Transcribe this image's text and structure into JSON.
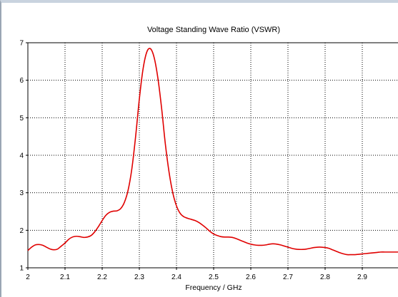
{
  "chart_data": {
    "type": "line",
    "title": "Voltage Standing Wave Ratio (VSWR)",
    "xlabel": "Frequency / GHz",
    "ylabel": "",
    "xlim": [
      2.0,
      3.0
    ],
    "ylim": [
      1,
      7
    ],
    "x_ticks": [
      "2",
      "2.1",
      "2.2",
      "2.3",
      "2.4",
      "2.5",
      "2.6",
      "2.7",
      "2.8",
      "2.9"
    ],
    "x_tick_values": [
      2.0,
      2.1,
      2.2,
      2.3,
      2.4,
      2.5,
      2.6,
      2.7,
      2.8,
      2.9
    ],
    "y_ticks": [
      "1",
      "2",
      "3",
      "4",
      "5",
      "6",
      "7"
    ],
    "y_tick_values": [
      1,
      2,
      3,
      4,
      5,
      6,
      7
    ],
    "grid": true,
    "legend": "none",
    "series": [
      {
        "color": "#e00000",
        "x": [
          2.0,
          2.01,
          2.02,
          2.03,
          2.04,
          2.05,
          2.06,
          2.07,
          2.08,
          2.09,
          2.1,
          2.11,
          2.12,
          2.13,
          2.14,
          2.15,
          2.16,
          2.17,
          2.18,
          2.19,
          2.2,
          2.21,
          2.22,
          2.23,
          2.24,
          2.25,
          2.26,
          2.27,
          2.28,
          2.29,
          2.3,
          2.31,
          2.32,
          2.33,
          2.34,
          2.35,
          2.36,
          2.37,
          2.38,
          2.39,
          2.4,
          2.41,
          2.42,
          2.43,
          2.44,
          2.45,
          2.46,
          2.47,
          2.48,
          2.49,
          2.5,
          2.51,
          2.52,
          2.53,
          2.54,
          2.55,
          2.56,
          2.57,
          2.58,
          2.59,
          2.6,
          2.61,
          2.62,
          2.63,
          2.64,
          2.65,
          2.66,
          2.67,
          2.68,
          2.69,
          2.7,
          2.71,
          2.72,
          2.73,
          2.74,
          2.75,
          2.76,
          2.77,
          2.78,
          2.79,
          2.8,
          2.81,
          2.82,
          2.83,
          2.84,
          2.85,
          2.86,
          2.87,
          2.88,
          2.89,
          2.9,
          2.91,
          2.92,
          2.93,
          2.94,
          2.95,
          2.96,
          2.97,
          2.98,
          2.99,
          3.0
        ],
        "y": [
          1.46,
          1.55,
          1.61,
          1.62,
          1.6,
          1.55,
          1.5,
          1.48,
          1.5,
          1.58,
          1.66,
          1.76,
          1.82,
          1.84,
          1.83,
          1.81,
          1.82,
          1.86,
          1.96,
          2.1,
          2.26,
          2.4,
          2.48,
          2.51,
          2.52,
          2.58,
          2.75,
          3.08,
          3.65,
          4.5,
          5.5,
          6.3,
          6.75,
          6.84,
          6.6,
          6.05,
          5.25,
          4.3,
          3.55,
          3.0,
          2.65,
          2.45,
          2.36,
          2.32,
          2.29,
          2.26,
          2.21,
          2.14,
          2.06,
          1.97,
          1.9,
          1.86,
          1.83,
          1.82,
          1.82,
          1.81,
          1.78,
          1.74,
          1.7,
          1.66,
          1.63,
          1.61,
          1.6,
          1.6,
          1.61,
          1.63,
          1.64,
          1.63,
          1.61,
          1.58,
          1.55,
          1.52,
          1.5,
          1.49,
          1.49,
          1.5,
          1.52,
          1.54,
          1.55,
          1.55,
          1.54,
          1.52,
          1.48,
          1.44,
          1.4,
          1.37,
          1.35,
          1.35,
          1.35,
          1.36,
          1.37,
          1.38,
          1.39,
          1.4,
          1.41,
          1.42,
          1.42,
          1.42,
          1.42,
          1.42,
          1.42
        ]
      }
    ]
  }
}
